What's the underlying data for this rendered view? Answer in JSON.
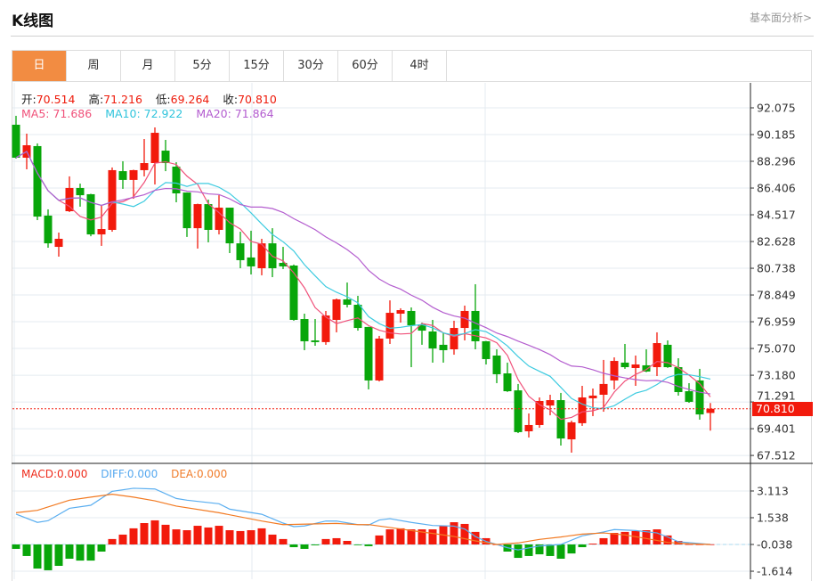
{
  "header": {
    "title": "K线图",
    "more_link": "基本面分析>"
  },
  "tabs": [
    {
      "label": "日",
      "active": true
    },
    {
      "label": "周"
    },
    {
      "label": "月"
    },
    {
      "label": "5分"
    },
    {
      "label": "15分"
    },
    {
      "label": "30分"
    },
    {
      "label": "60分"
    },
    {
      "label": "4时"
    }
  ],
  "info": {
    "open_label": "开:",
    "open": "70.514",
    "high_label": "高:",
    "high": "71.216",
    "low_label": "低:",
    "low": "69.264",
    "close_label": "收:",
    "close": "70.810",
    "ma5": "MA5: 71.686",
    "ma10": "MA10: 72.922",
    "ma20": "MA20: 71.864"
  },
  "macd_info": {
    "macd": "MACD:0.000",
    "diff": "DIFF:0.000",
    "dea": "DEA:0.000"
  },
  "last_price": "70.810",
  "colors": {
    "up": "#f21a0c",
    "down": "#08a60a",
    "ma5": "#f0517a",
    "ma10": "#3dcbe0",
    "ma20": "#b45ecf",
    "diff": "#5aaef0",
    "dea": "#f27a22",
    "active_tab": "#f28c42"
  },
  "chart_data": [
    {
      "type": "candlestick",
      "price_axis": {
        "range": [
          67.0,
          92.6
        ],
        "ticks": [
          "92.075",
          "90.185",
          "88.296",
          "86.406",
          "84.517",
          "82.628",
          "80.738",
          "78.849",
          "76.959",
          "75.070",
          "73.180",
          "71.291",
          "69.401",
          "67.512"
        ]
      },
      "ohlc_fields": [
        "open",
        "high",
        "low",
        "close"
      ],
      "candles": [
        [
          90.88,
          91.51,
          88.49,
          88.55
        ],
        [
          88.55,
          90.25,
          87.73,
          89.43
        ],
        [
          89.37,
          89.56,
          84.14,
          84.39
        ],
        [
          84.46,
          84.9,
          82.19,
          82.5
        ],
        [
          82.25,
          83.26,
          81.56,
          82.82
        ],
        [
          84.77,
          87.23,
          84.71,
          86.41
        ],
        [
          86.41,
          86.72,
          85.09,
          85.9
        ],
        [
          85.97,
          86.0,
          83.0,
          83.13
        ],
        [
          83.13,
          85.21,
          82.32,
          83.51
        ],
        [
          83.45,
          87.86,
          83.32,
          87.67
        ],
        [
          87.6,
          88.3,
          86.35,
          86.98
        ],
        [
          86.98,
          87.7,
          85.65,
          87.67
        ],
        [
          87.67,
          89.87,
          87.23,
          88.17
        ],
        [
          88.17,
          90.69,
          86.66,
          90.31
        ],
        [
          89.05,
          89.81,
          87.6,
          88.17
        ],
        [
          87.92,
          88.23,
          85.4,
          86.03
        ],
        [
          86.09,
          86.1,
          82.95,
          83.57
        ],
        [
          83.57,
          85.3,
          82.13,
          85.27
        ],
        [
          85.27,
          85.59,
          82.57,
          83.45
        ],
        [
          83.45,
          85.9,
          83.13,
          85.02
        ],
        [
          85.02,
          85.0,
          81.81,
          82.5
        ],
        [
          82.5,
          83.32,
          80.74,
          81.31
        ],
        [
          81.5,
          83.39,
          80.3,
          80.87
        ],
        [
          80.74,
          82.82,
          80.24,
          82.5
        ],
        [
          82.5,
          83.57,
          80.11,
          80.74
        ],
        [
          81.12,
          82.25,
          80.68,
          80.87
        ],
        [
          80.93,
          81.0,
          77.03,
          77.09
        ],
        [
          77.15,
          77.53,
          74.95,
          75.58
        ],
        [
          75.64,
          77.15,
          75.26,
          75.52
        ],
        [
          75.52,
          77.72,
          75.33,
          77.4
        ],
        [
          77.09,
          78.6,
          76.21,
          78.54
        ],
        [
          78.54,
          79.73,
          77.97,
          78.16
        ],
        [
          78.16,
          78.79,
          76.33,
          76.52
        ],
        [
          76.59,
          76.6,
          72.18,
          72.81
        ],
        [
          72.81,
          75.96,
          72.74,
          75.77
        ],
        [
          75.77,
          78.47,
          75.39,
          77.59
        ],
        [
          77.53,
          77.91,
          76.9,
          77.78
        ],
        [
          77.72,
          77.97,
          73.75,
          76.71
        ],
        [
          76.77,
          76.9,
          75.33,
          76.33
        ],
        [
          76.27,
          77.09,
          74.07,
          75.07
        ],
        [
          75.33,
          76.21,
          74.07,
          74.95
        ],
        [
          75.01,
          77.03,
          74.63,
          76.52
        ],
        [
          76.52,
          78.1,
          75.64,
          77.72
        ],
        [
          77.72,
          79.61,
          75.01,
          75.58
        ],
        [
          75.58,
          75.6,
          73.94,
          74.32
        ],
        [
          74.57,
          75.01,
          72.62,
          73.25
        ],
        [
          73.31,
          74.07,
          72.0,
          72.05
        ],
        [
          72.11,
          72.56,
          69.09,
          69.16
        ],
        [
          69.22,
          70.48,
          68.78,
          69.66
        ],
        [
          69.66,
          71.61,
          69.47,
          71.36
        ],
        [
          71.04,
          71.8,
          70.35,
          71.42
        ],
        [
          71.42,
          71.93,
          68.21,
          68.71
        ],
        [
          68.65,
          69.97,
          67.71,
          69.85
        ],
        [
          69.79,
          72.43,
          69.6,
          71.61
        ],
        [
          71.55,
          72.24,
          70.29,
          71.74
        ],
        [
          71.8,
          74.26,
          70.6,
          72.56
        ],
        [
          72.81,
          74.44,
          72.18,
          74.19
        ],
        [
          74.07,
          75.39,
          73.63,
          73.75
        ],
        [
          73.69,
          74.57,
          72.43,
          73.94
        ],
        [
          73.88,
          75.01,
          73.4,
          73.44
        ],
        [
          73.75,
          76.21,
          73.12,
          75.45
        ],
        [
          75.33,
          75.64,
          73.7,
          73.75
        ],
        [
          73.75,
          74.38,
          71.74,
          71.99
        ],
        [
          72.05,
          72.62,
          71.23,
          71.3
        ],
        [
          72.81,
          73.63,
          70.04,
          70.41
        ],
        [
          70.514,
          71.216,
          69.264,
          70.81
        ]
      ],
      "moving_averages": [
        "MA5",
        "MA10",
        "MA20"
      ]
    },
    {
      "type": "bar+line",
      "axis": {
        "range": [
          -1.9,
          3.5
        ],
        "ticks": [
          "3.113",
          "1.538",
          "-0.038",
          "-1.614"
        ]
      },
      "macd_histogram": [
        -0.26,
        -0.68,
        -1.42,
        -1.52,
        -1.26,
        -0.84,
        -0.95,
        -0.95,
        -0.42,
        0.32,
        0.58,
        0.95,
        1.26,
        1.42,
        1.16,
        0.89,
        0.84,
        1.1,
        1.0,
        1.1,
        0.84,
        0.79,
        0.84,
        0.95,
        0.58,
        0.32,
        -0.16,
        -0.26,
        -0.05,
        0.32,
        0.37,
        0.21,
        -0.02,
        -0.1,
        0.53,
        0.89,
        0.95,
        0.89,
        0.89,
        0.89,
        1.1,
        1.31,
        1.21,
        0.74,
        0.37,
        0.01,
        -0.42,
        -0.79,
        -0.68,
        -0.58,
        -0.68,
        -0.84,
        -0.53,
        -0.16,
        0.05,
        0.37,
        0.68,
        0.74,
        0.79,
        0.84,
        0.89,
        0.53,
        0.21,
        0.02,
        0.01,
        0.01
      ],
      "diff_points": [
        [
          0,
          1.79
        ],
        [
          2,
          1.3
        ],
        [
          3,
          1.4
        ],
        [
          5,
          2.13
        ],
        [
          7,
          2.31
        ],
        [
          9,
          3.13
        ],
        [
          11,
          3.31
        ],
        [
          13,
          3.27
        ],
        [
          15,
          2.71
        ],
        [
          16,
          2.61
        ],
        [
          19,
          2.4
        ],
        [
          20,
          2.08
        ],
        [
          23,
          1.78
        ],
        [
          25,
          1.26
        ],
        [
          26,
          1.05
        ],
        [
          27,
          1.09
        ],
        [
          29,
          1.38
        ],
        [
          30,
          1.38
        ],
        [
          32,
          1.17
        ],
        [
          33,
          1.14
        ],
        [
          34,
          1.44
        ],
        [
          35,
          1.52
        ],
        [
          37,
          1.3
        ],
        [
          39,
          1.12
        ],
        [
          41,
          1.08
        ],
        [
          42,
          0.91
        ],
        [
          43,
          0.47
        ],
        [
          44,
          0.18
        ],
        [
          45,
          0.0
        ],
        [
          46,
          -0.19
        ],
        [
          47,
          -0.32
        ],
        [
          49,
          -0.09
        ],
        [
          51,
          0.0
        ],
        [
          53,
          0.51
        ],
        [
          55,
          0.74
        ],
        [
          56,
          0.88
        ],
        [
          58,
          0.82
        ],
        [
          60,
          0.68
        ],
        [
          61,
          0.44
        ],
        [
          62,
          0.16
        ],
        [
          65,
          0.0
        ]
      ],
      "dea_points": [
        [
          0,
          1.87
        ],
        [
          2,
          2.01
        ],
        [
          5,
          2.61
        ],
        [
          7,
          2.79
        ],
        [
          9,
          2.96
        ],
        [
          11,
          2.79
        ],
        [
          13,
          2.57
        ],
        [
          15,
          2.26
        ],
        [
          19,
          1.87
        ],
        [
          23,
          1.38
        ],
        [
          25,
          1.17
        ],
        [
          30,
          1.24
        ],
        [
          32,
          1.17
        ],
        [
          33,
          1.17
        ],
        [
          35,
          1.0
        ],
        [
          37,
          0.82
        ],
        [
          39,
          0.65
        ],
        [
          41,
          0.47
        ],
        [
          43,
          0.21
        ],
        [
          45,
          0.0
        ],
        [
          47,
          0.09
        ],
        [
          49,
          0.3
        ],
        [
          51,
          0.44
        ],
        [
          53,
          0.61
        ],
        [
          55,
          0.68
        ],
        [
          57,
          0.56
        ],
        [
          59,
          0.35
        ],
        [
          61,
          0.12
        ],
        [
          63,
          0.04
        ],
        [
          65,
          0.0
        ]
      ]
    }
  ]
}
